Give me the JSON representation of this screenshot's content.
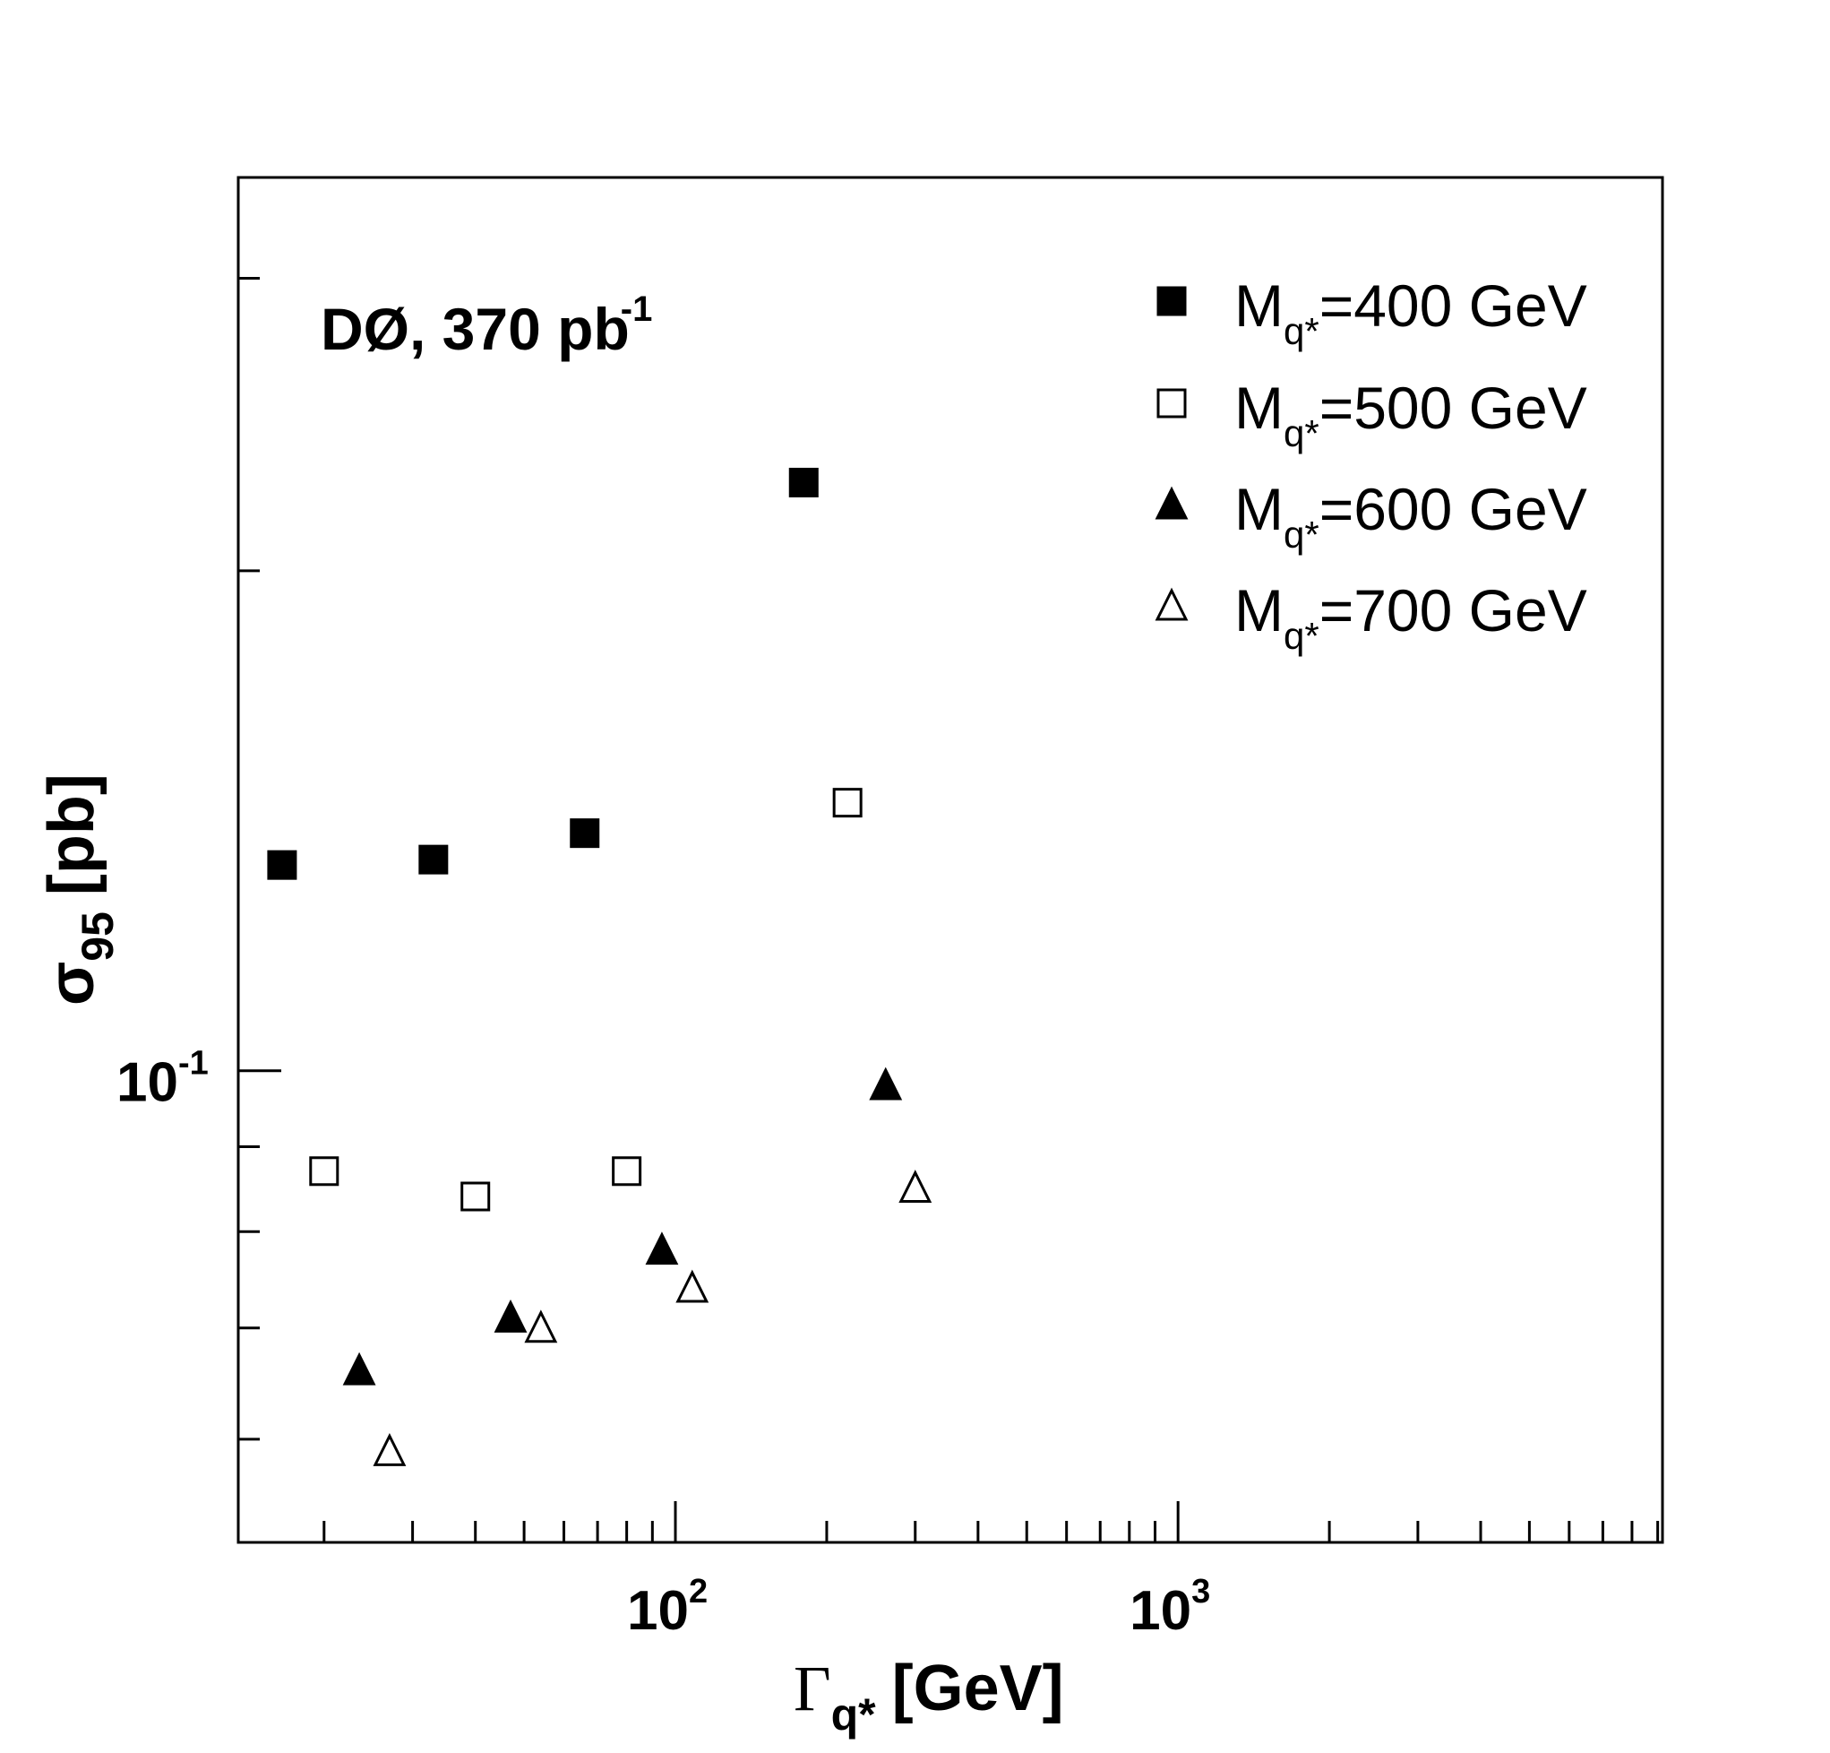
{
  "chart_data": {
    "type": "scatter",
    "annotation": {
      "text": "DØ, 370 pb",
      "sup": "-1"
    },
    "xlabel": {
      "symbol": "Γ",
      "sub": "q*",
      "unit": "[GeV]"
    },
    "ylabel": {
      "symbol": "σ",
      "sub": "95",
      "unit": "[pb]"
    },
    "x_scale": "log",
    "y_scale": "log",
    "xlim": [
      13.5,
      9200
    ],
    "ylim": [
      0.052,
      0.345
    ],
    "x_ticklabels": [
      {
        "value": 100,
        "base": "10",
        "exp": "2"
      },
      {
        "value": 1000,
        "base": "10",
        "exp": "3"
      }
    ],
    "y_ticklabels": [
      {
        "value": 0.1,
        "base": "10",
        "exp": "-1"
      }
    ],
    "grid": false,
    "legend_position": "top-right",
    "series": [
      {
        "legend_prefix": "M",
        "legend_sub": "q*",
        "legend_suffix": "=400 GeV",
        "marker": "square-filled",
        "points": [
          {
            "x": 16.5,
            "y": 0.133
          },
          {
            "x": 33,
            "y": 0.134
          },
          {
            "x": 66,
            "y": 0.139
          },
          {
            "x": 180,
            "y": 0.226
          }
        ]
      },
      {
        "legend_prefix": "M",
        "legend_sub": "q*",
        "legend_suffix": "=500 GeV",
        "marker": "square-open",
        "points": [
          {
            "x": 20,
            "y": 0.087
          },
          {
            "x": 40,
            "y": 0.084
          },
          {
            "x": 80,
            "y": 0.087
          },
          {
            "x": 220,
            "y": 0.145
          }
        ]
      },
      {
        "legend_prefix": "M",
        "legend_sub": "q*",
        "legend_suffix": "=600 GeV",
        "marker": "triangle-filled",
        "points": [
          {
            "x": 23.5,
            "y": 0.066
          },
          {
            "x": 47,
            "y": 0.071
          },
          {
            "x": 94,
            "y": 0.078
          },
          {
            "x": 262,
            "y": 0.098
          }
        ]
      },
      {
        "legend_prefix": "M",
        "legend_sub": "q*",
        "legend_suffix": "=700 GeV",
        "marker": "triangle-open",
        "points": [
          {
            "x": 27,
            "y": 0.059
          },
          {
            "x": 54,
            "y": 0.07
          },
          {
            "x": 108,
            "y": 0.074
          },
          {
            "x": 300,
            "y": 0.085
          }
        ]
      }
    ]
  }
}
